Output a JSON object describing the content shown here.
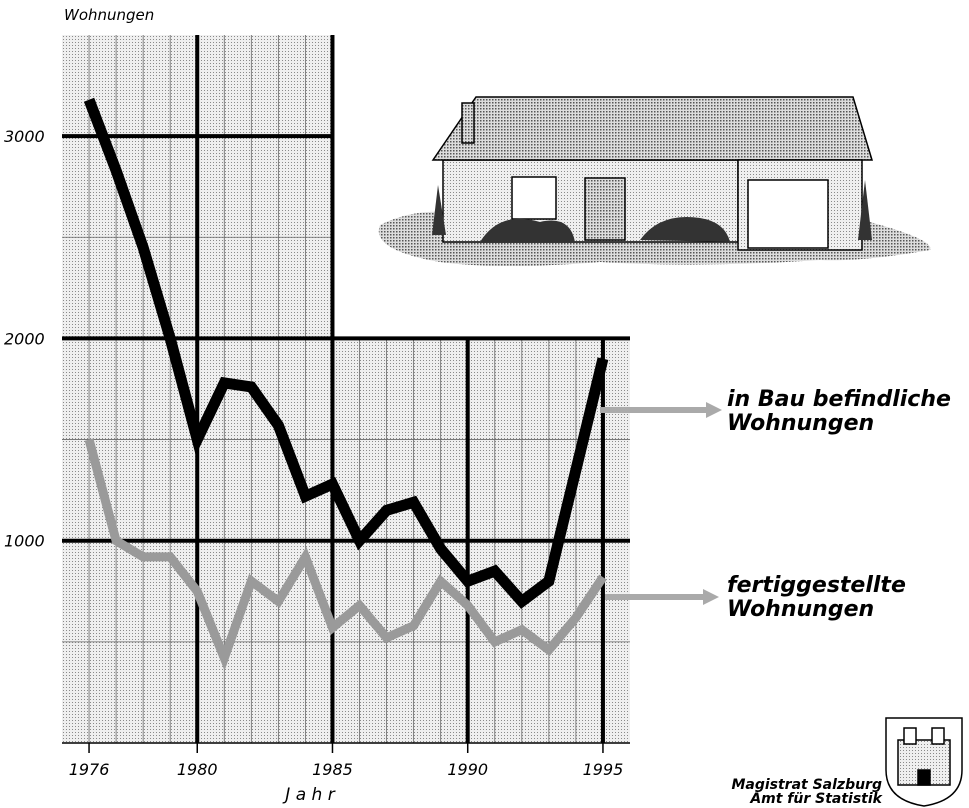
{
  "chart_data": {
    "type": "line",
    "y_label": "Wohnungen",
    "x_label": "J a h r",
    "x": [
      1976,
      1977,
      1978,
      1979,
      1980,
      1981,
      1982,
      1983,
      1984,
      1985,
      1986,
      1987,
      1988,
      1989,
      1990,
      1991,
      1992,
      1993,
      1994,
      1995
    ],
    "series": [
      {
        "name": "in Bau befindliche Wohnungen",
        "color": "#000000",
        "values": [
          3180,
          2830,
          2450,
          2000,
          1500,
          1780,
          1760,
          1570,
          1220,
          1280,
          1000,
          1150,
          1190,
          960,
          800,
          850,
          700,
          800,
          1350,
          1900
        ]
      },
      {
        "name": "fertiggestellte Wohnungen",
        "color": "#9a9a9a",
        "values": [
          1500,
          1000,
          920,
          920,
          750,
          420,
          800,
          700,
          920,
          570,
          680,
          520,
          580,
          800,
          680,
          500,
          560,
          460,
          620,
          820
        ]
      }
    ],
    "xlim": [
      1975,
      1996
    ],
    "xticks": [
      1976,
      1980,
      1985,
      1990,
      1995
    ],
    "ylim": [
      0,
      3500
    ],
    "yticks": [
      1000,
      2000,
      3000
    ],
    "grid": true,
    "annotations": [
      "Magistrat Salzburg",
      "Amt für Statistik"
    ]
  }
}
